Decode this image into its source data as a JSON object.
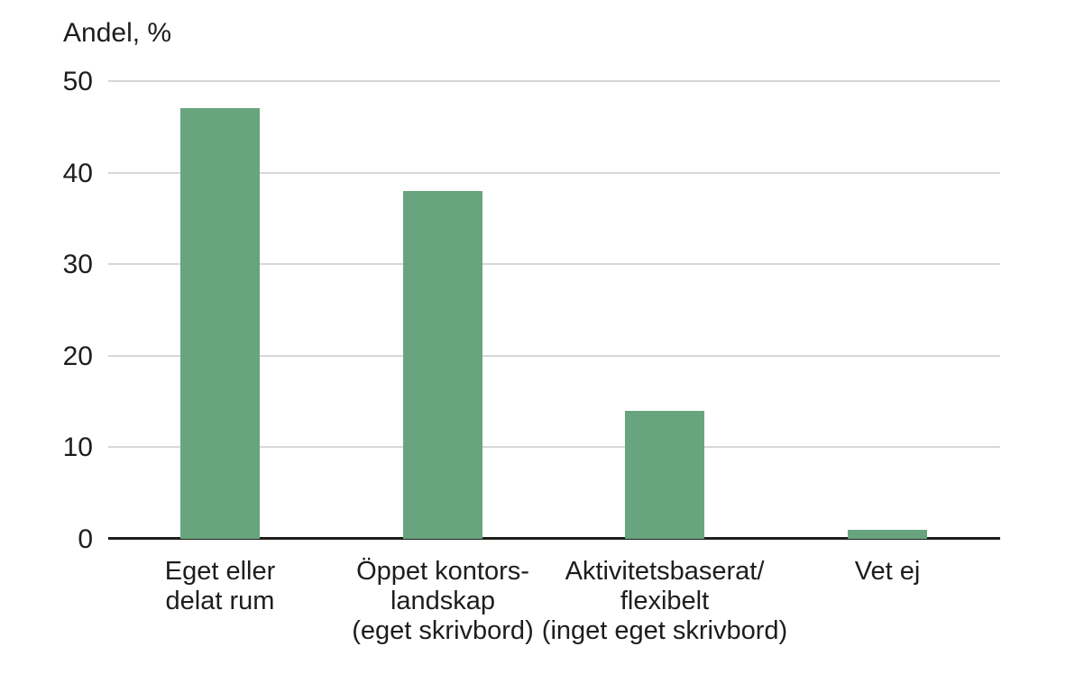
{
  "chart_data": {
    "type": "bar",
    "title": "Andel, %",
    "categories": [
      "Eget eller\ndelat rum",
      "Öppet kontors-\nlandskap\n(eget skrivbord)",
      "Aktivitetsbaserat/\nflexibelt\n(inget eget skrivbord)",
      "Vet ej"
    ],
    "values": [
      47,
      38,
      14,
      1
    ],
    "xlabel": "",
    "ylabel": "Andel, %",
    "ylim": [
      0,
      50
    ],
    "yticks": [
      0,
      10,
      20,
      30,
      40,
      50
    ],
    "grid": true,
    "legend": "none",
    "colors": {
      "bar": "#68a57e",
      "gridline": "#d7d7d7",
      "axis": "#1d1d1b",
      "text": "#1d1d1b",
      "background": "#ffffff"
    }
  }
}
